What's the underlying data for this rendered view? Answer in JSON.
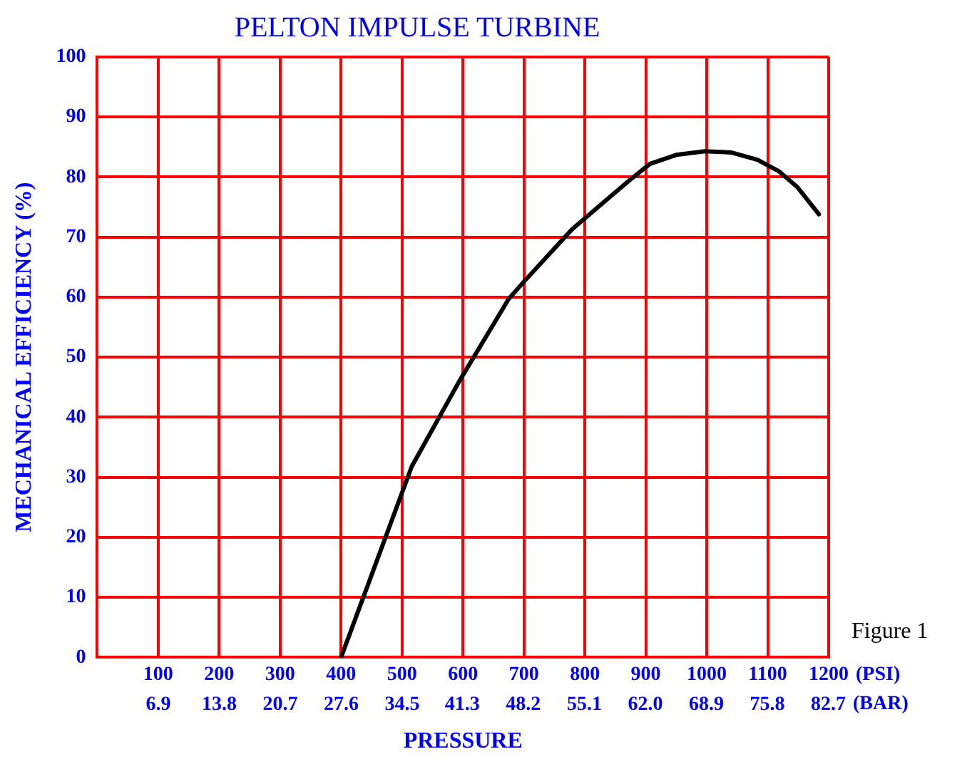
{
  "chart_data": {
    "type": "line",
    "title": "PELTON IMPULSE TURBINE",
    "xlabel": "PRESSURE",
    "ylabel": "MECHANICAL EFFICIENCY (%)",
    "series": [
      {
        "color": "#000000",
        "x": [
          400,
          516,
          594,
          675,
          702,
          779,
          833,
          876,
          907,
          950,
          997,
          1040,
          1083,
          1118,
          1149,
          1184
        ],
        "values": [
          0,
          31.8,
          46,
          59.7,
          62.8,
          71.3,
          76,
          79.7,
          82.2,
          83.7,
          84.3,
          84.1,
          82.9,
          81,
          78.3,
          73.8
        ]
      }
    ],
    "xlim": [
      0,
      1200
    ],
    "xticks": [
      {
        "value": 0,
        "label": null
      },
      100,
      200,
      300,
      400,
      500,
      600,
      700,
      800,
      900,
      1000,
      1100,
      1200
    ],
    "x2lim": [
      0,
      82.74
    ],
    "x2ticks": [
      6.9,
      13.8,
      20.7,
      27.6,
      34.5,
      41.3,
      48.2,
      55.1,
      {
        "value": 62.0,
        "label": "62.0"
      },
      68.9,
      75.8,
      82.7
    ],
    "ylim": [
      0,
      100
    ],
    "yticks": [
      0,
      10,
      20,
      30,
      40,
      50,
      60,
      70,
      80,
      90,
      100
    ],
    "grid": true,
    "legend": false,
    "marker": "none",
    "line_style": "solid",
    "annotations": [
      "(PSI)",
      "(BAR)",
      "Figure 1"
    ]
  }
}
